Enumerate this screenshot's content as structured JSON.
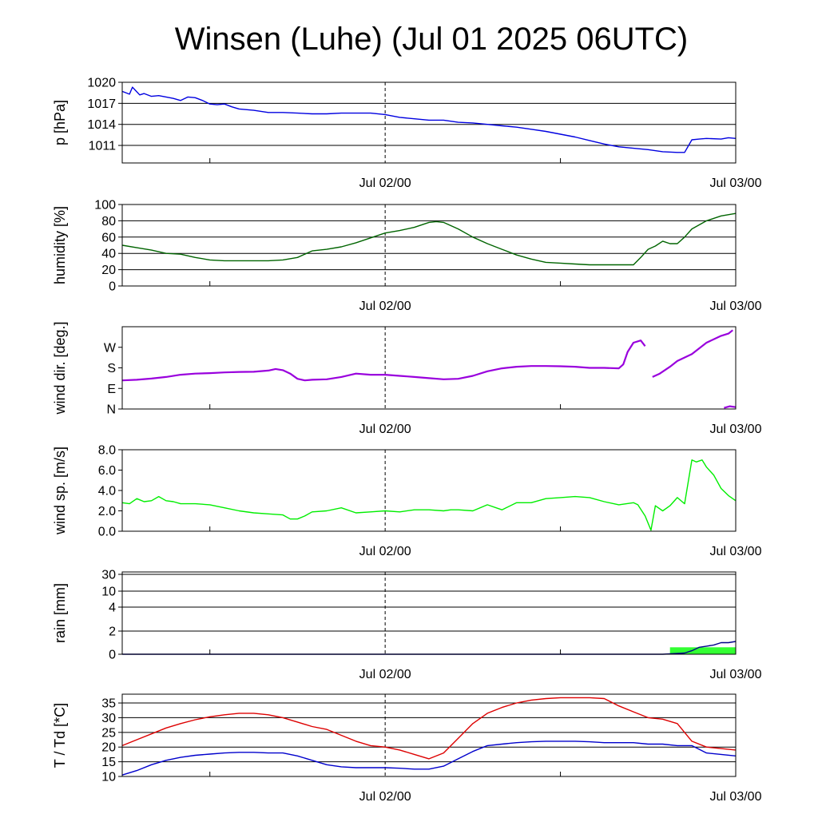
{
  "title": "Winsen (Luhe) (Jul 01 2025 06UTC)",
  "colors": {
    "pressure": "#0000e0",
    "humidity": "#006400",
    "wind_dir": "#9900dd",
    "wind_speed": "#00ee00",
    "rain_total": "#00008b",
    "rain_bar": "#33ff33",
    "temperature": "#dd0000",
    "dewpoint": "#0000cc"
  },
  "chart_data": [
    {
      "type": "line",
      "ylabel": "p [hPa]",
      "ylim": [
        1008.5,
        1020
      ],
      "yticks": [
        1020,
        1017,
        1014,
        1011
      ],
      "ytick_labels": [
        "1020",
        "1017",
        "1014",
        "1011"
      ],
      "xlim": [
        0,
        42
      ],
      "x_minor_ticks": [
        6,
        30
      ],
      "x_divider": 18,
      "xtick_labels": [
        {
          "x": 18,
          "label": "Jul 02/00"
        },
        {
          "x": 42,
          "label": "Jul 03/00"
        }
      ],
      "grid": true,
      "series": [
        {
          "color_key": "pressure",
          "x": [
            0,
            0.5,
            0.7,
            1.2,
            1.5,
            2,
            2.5,
            3,
            3.5,
            4,
            4.5,
            5,
            5.5,
            6,
            6.5,
            7,
            7.5,
            8,
            9,
            10,
            11,
            12,
            13,
            14,
            15,
            16,
            17,
            18,
            19,
            20,
            21,
            22,
            23,
            24,
            25,
            26,
            27,
            28,
            29,
            30,
            31,
            32,
            33,
            34,
            35,
            36,
            37,
            38,
            38.5,
            39,
            39.5,
            40,
            41,
            41.5,
            42
          ],
          "y": [
            1018.7,
            1018.3,
            1019.3,
            1018.2,
            1018.4,
            1018.0,
            1018.1,
            1017.9,
            1017.7,
            1017.4,
            1017.9,
            1017.8,
            1017.4,
            1016.9,
            1016.8,
            1016.9,
            1016.5,
            1016.2,
            1016.0,
            1015.7,
            1015.7,
            1015.6,
            1015.5,
            1015.5,
            1015.6,
            1015.6,
            1015.6,
            1015.4,
            1015.0,
            1014.8,
            1014.6,
            1014.6,
            1014.3,
            1014.2,
            1014.0,
            1013.8,
            1013.6,
            1013.3,
            1013.0,
            1012.6,
            1012.2,
            1011.7,
            1011.2,
            1010.8,
            1010.6,
            1010.4,
            1010.1,
            1010.0,
            1010.0,
            1011.8,
            1011.9,
            1012.0,
            1011.9,
            1012.1,
            1012.0
          ]
        }
      ]
    },
    {
      "type": "line",
      "ylabel": "humidity [%]",
      "ylim": [
        0,
        100
      ],
      "yticks": [
        0,
        20,
        40,
        60,
        80,
        100
      ],
      "ytick_labels": [
        "0",
        "20",
        "40",
        "60",
        "80",
        "100"
      ],
      "xlim": [
        0,
        42
      ],
      "x_minor_ticks": [
        6,
        30
      ],
      "x_divider": 18,
      "xtick_labels": [
        {
          "x": 18,
          "label": "Jul 02/00"
        },
        {
          "x": 42,
          "label": "Jul 03/00"
        }
      ],
      "grid": true,
      "series": [
        {
          "color_key": "humidity",
          "x": [
            0,
            1,
            2,
            3,
            4,
            5,
            6,
            7,
            8,
            9,
            10,
            11,
            12,
            13,
            14,
            15,
            16,
            17,
            18,
            19,
            20,
            21,
            21.5,
            22,
            23,
            24,
            25,
            26,
            27,
            28,
            29,
            30,
            31,
            32,
            33,
            34,
            35,
            35.5,
            36,
            36.5,
            37,
            37.5,
            38,
            38.5,
            39,
            40,
            41,
            42
          ],
          "y": [
            50,
            47,
            44,
            40,
            39,
            35,
            32,
            31,
            31,
            31,
            31,
            32,
            35,
            43,
            45,
            48,
            53,
            59,
            65,
            68,
            72,
            78,
            79,
            78,
            70,
            60,
            52,
            45,
            38,
            33,
            29,
            28,
            27,
            26,
            26,
            26,
            26,
            35,
            45,
            49,
            55,
            52,
            52,
            60,
            70,
            80,
            86,
            89
          ]
        }
      ]
    },
    {
      "type": "scatter",
      "ylabel": "wind dir. [deg.]",
      "ylim": [
        0,
        360
      ],
      "yticks": [
        0,
        90,
        180,
        270
      ],
      "ytick_labels": [
        "N",
        "E",
        "S",
        "W"
      ],
      "xlim": [
        0,
        42
      ],
      "x_minor_ticks": [
        6,
        30
      ],
      "x_divider": 18,
      "xtick_labels": [
        {
          "x": 18,
          "label": "Jul 02/00"
        },
        {
          "x": 42,
          "label": "Jul 03/00"
        }
      ],
      "grid": false,
      "series": [
        {
          "color_key": "wind_dir",
          "x": [
            0,
            1,
            2,
            3,
            4,
            5,
            6,
            7,
            8,
            9,
            10,
            10.5,
            11,
            11.5,
            12,
            12.5,
            13,
            14,
            15,
            16,
            17,
            18,
            19,
            20,
            21,
            22,
            23,
            24,
            25,
            26,
            27,
            28,
            29,
            30,
            31,
            32,
            33,
            34,
            34.3,
            34.6,
            35,
            35.5,
            35.8
          ],
          "y": [
            125,
            128,
            133,
            140,
            150,
            155,
            157,
            160,
            162,
            163,
            168,
            175,
            170,
            155,
            132,
            125,
            128,
            130,
            140,
            155,
            150,
            150,
            145,
            140,
            135,
            130,
            132,
            145,
            165,
            178,
            185,
            188,
            188,
            187,
            185,
            180,
            180,
            178,
            195,
            250,
            290,
            300,
            275
          ]
        },
        {
          "color_key": "wind_dir",
          "x": [
            36.3,
            36.8,
            37.5,
            38,
            39,
            40,
            41,
            41.5,
            41.8
          ],
          "y": [
            140,
            155,
            185,
            210,
            240,
            290,
            320,
            330,
            345
          ]
        },
        {
          "color_key": "wind_dir",
          "x": [
            41.2,
            41.6,
            42
          ],
          "y": [
            5,
            12,
            8
          ]
        }
      ]
    },
    {
      "type": "line",
      "ylabel": "wind sp. [m/s]",
      "ylim": [
        0,
        8
      ],
      "yticks": [
        0,
        2,
        4,
        6,
        8
      ],
      "ytick_labels": [
        "0.0",
        "2.0",
        "4.0",
        "6.0",
        "8.0"
      ],
      "xlim": [
        0,
        42
      ],
      "x_minor_ticks": [
        6,
        30
      ],
      "x_divider": 18,
      "xtick_labels": [
        {
          "x": 18,
          "label": "Jul 02/00"
        },
        {
          "x": 42,
          "label": "Jul 03/00"
        }
      ],
      "grid": false,
      "series": [
        {
          "color_key": "wind_speed",
          "x": [
            0,
            0.5,
            1,
            1.5,
            2,
            2.5,
            3,
            3.5,
            4,
            5,
            6,
            7,
            8,
            9,
            10,
            11,
            11.5,
            12,
            12.5,
            13,
            14,
            15,
            16,
            17,
            18,
            19,
            20,
            21,
            22,
            22.5,
            23,
            24,
            25,
            26,
            27,
            28,
            29,
            30,
            31,
            32,
            33,
            34,
            35,
            35.3,
            35.8,
            36.2,
            36.5,
            37,
            37.5,
            38,
            38.5,
            39,
            39.3,
            39.7,
            40,
            40.5,
            41,
            41.5,
            42
          ],
          "y": [
            2.8,
            2.7,
            3.2,
            2.9,
            3.0,
            3.4,
            3.0,
            2.9,
            2.7,
            2.7,
            2.6,
            2.3,
            2.0,
            1.8,
            1.7,
            1.6,
            1.2,
            1.2,
            1.5,
            1.9,
            2.0,
            2.3,
            1.8,
            1.9,
            2.0,
            1.9,
            2.1,
            2.1,
            2.0,
            2.1,
            2.1,
            2.0,
            2.6,
            2.1,
            2.8,
            2.8,
            3.2,
            3.3,
            3.4,
            3.3,
            2.9,
            2.6,
            2.8,
            2.6,
            1.5,
            0.1,
            2.5,
            2.0,
            2.5,
            3.3,
            2.7,
            7.0,
            6.8,
            7.0,
            6.3,
            5.5,
            4.2,
            3.5,
            3.0
          ]
        }
      ]
    },
    {
      "type": "line",
      "ylabel": "rain [mm]",
      "scale": "custom",
      "ylim": [
        0,
        30
      ],
      "yticks": [
        0,
        2,
        4,
        10,
        30
      ],
      "ytick_labels": [
        "0",
        "2",
        "4",
        "10",
        "30"
      ],
      "xlim": [
        0,
        42
      ],
      "x_minor_ticks": [
        6,
        30
      ],
      "x_divider": 18,
      "xtick_labels": [
        {
          "x": 18,
          "label": "Jul 02/00"
        },
        {
          "x": 42,
          "label": "Jul 03/00"
        }
      ],
      "grid": true,
      "bars": [
        {
          "color_key": "rain_bar",
          "x0": 37.5,
          "x1": 42,
          "value": 0.6
        }
      ],
      "series": [
        {
          "color_key": "rain_total",
          "x": [
            0,
            37,
            38.5,
            39,
            39.5,
            40,
            40.5,
            41,
            41.5,
            42
          ],
          "y": [
            0,
            0,
            0.1,
            0.3,
            0.6,
            0.7,
            0.8,
            1.0,
            1.0,
            1.1
          ]
        }
      ]
    },
    {
      "type": "line",
      "ylabel": "T / Td [*C]",
      "ylim": [
        10,
        38
      ],
      "yticks": [
        10,
        15,
        20,
        25,
        30,
        35
      ],
      "ytick_labels": [
        "10",
        "15",
        "20",
        "25",
        "30",
        "35"
      ],
      "xlim": [
        0,
        42
      ],
      "x_minor_ticks": [
        6,
        30
      ],
      "x_divider": 18,
      "xtick_labels": [
        {
          "x": 18,
          "label": "Jul 02/00"
        },
        {
          "x": 42,
          "label": "Jul 03/00"
        }
      ],
      "grid": true,
      "series": [
        {
          "color_key": "temperature",
          "x": [
            0,
            1,
            2,
            3,
            4,
            5,
            6,
            7,
            8,
            9,
            10,
            11,
            12,
            13,
            14,
            15,
            16,
            17,
            18,
            19,
            20,
            21,
            22,
            23,
            24,
            25,
            26,
            27,
            28,
            29,
            30,
            31,
            32,
            33,
            34,
            35,
            36,
            37,
            38,
            39,
            40,
            41,
            42
          ],
          "y": [
            20.5,
            22.5,
            24.5,
            26.5,
            28,
            29.3,
            30.3,
            31,
            31.5,
            31.5,
            31,
            30,
            28.5,
            27,
            26,
            24,
            22,
            20.5,
            20,
            19,
            17.5,
            16,
            18,
            23,
            28,
            31.5,
            33.5,
            35,
            36,
            36.5,
            36.8,
            36.8,
            36.8,
            36.5,
            34,
            32,
            30,
            29.5,
            28,
            22,
            20,
            19.5,
            19
          ]
        },
        {
          "color_key": "dewpoint",
          "x": [
            0,
            1,
            2,
            3,
            4,
            5,
            6,
            7,
            8,
            9,
            10,
            11,
            12,
            13,
            14,
            15,
            16,
            17,
            18,
            19,
            20,
            21,
            22,
            23,
            24,
            25,
            26,
            27,
            28,
            29,
            30,
            31,
            32,
            33,
            34,
            35,
            36,
            37,
            38,
            39,
            40,
            41,
            42
          ],
          "y": [
            10.5,
            12,
            14,
            15.5,
            16.5,
            17.2,
            17.6,
            18,
            18.2,
            18.2,
            18,
            18,
            17,
            15.5,
            14,
            13.3,
            13,
            13,
            13,
            12.8,
            12.5,
            12.5,
            13.5,
            16,
            18.5,
            20.5,
            21,
            21.5,
            21.8,
            22,
            22,
            22,
            21.8,
            21.5,
            21.5,
            21.5,
            21,
            21,
            20.5,
            20.5,
            18,
            17.5,
            17
          ]
        }
      ]
    }
  ]
}
